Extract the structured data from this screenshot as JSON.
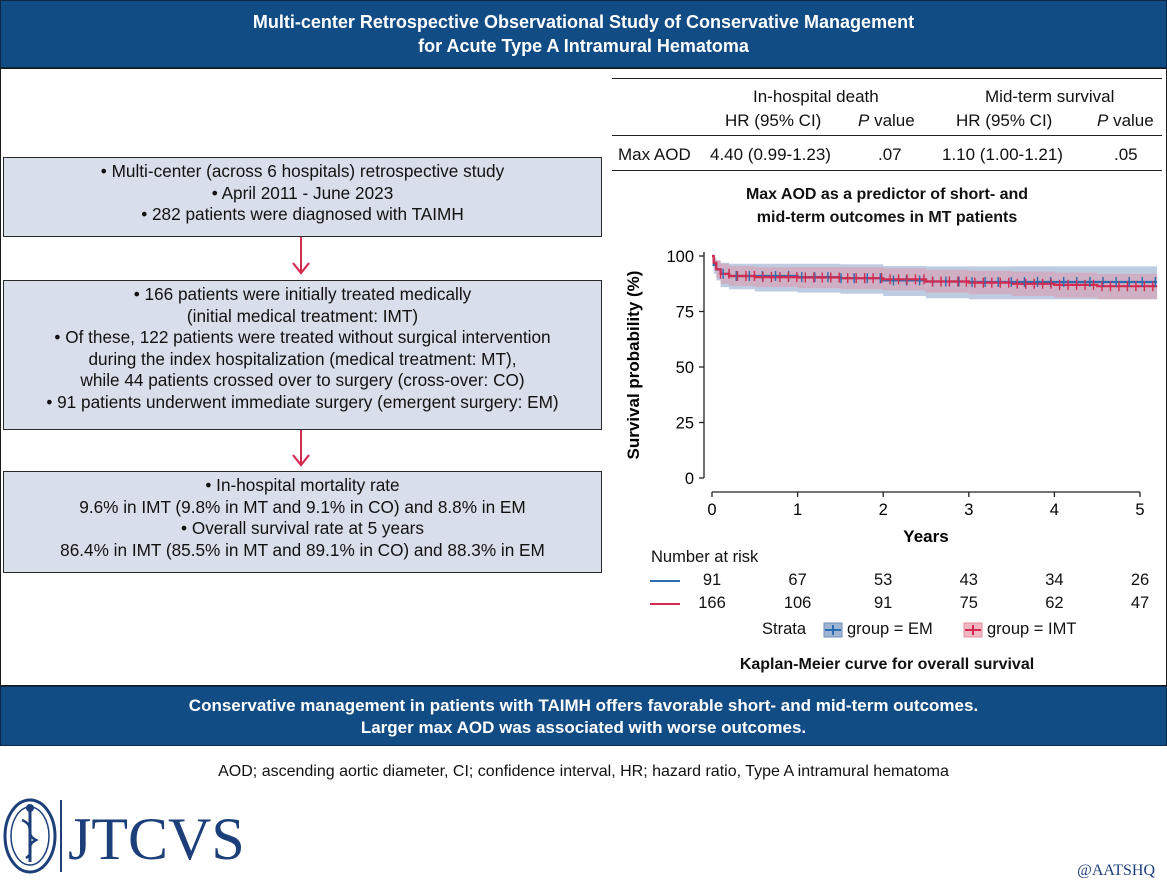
{
  "header": {
    "title_line1": "Multi-center Retrospective Observational Study of Conservative Management",
    "title_line2": "for Acute Type A Intramural Hematoma"
  },
  "boxes": [
    {
      "lines": [
        "• Multi-center (across 6 hospitals) retrospective study",
        "• April 2011 - June 2023",
        "• 282 patients were diagnosed with TAIMH"
      ]
    },
    {
      "lines": [
        "• 166 patients were initially treated medically",
        "(initial medical treatment: IMT)",
        "• Of these, 122 patients were treated without surgical intervention",
        "during the index hospitalization (medical treatment: MT),",
        "while 44 patients crossed over to surgery (cross-over: CO)",
        "• 91 patients underwent immediate surgery (emergent surgery: EM)"
      ]
    },
    {
      "lines": [
        "• In-hospital mortality rate",
        "9.6% in IMT (9.8% in MT and 9.1% in CO) and 8.8% in EM",
        "• Overall survival rate at 5 years",
        "86.4% in IMT (85.5% in MT and 89.1% in CO) and 88.3% in EM"
      ]
    }
  ],
  "hr_table": {
    "group1": "In-hospital death",
    "group2": "Mid-term survival",
    "col_hr": "HR (95% CI)",
    "col_p_italic": "P",
    "col_p_rest": " value",
    "row_label": "Max AOD",
    "row_hr1": "4.40 (0.99-1.23)",
    "row_p1": ".07",
    "row_hr2": "1.10 (1.00-1.21)",
    "row_p2": ".05"
  },
  "chart_data": {
    "type": "line",
    "title": "Max AOD as a predictor of short- and mid-term outcomes in MT patients",
    "title_line1": "Max AOD as a predictor of short- and",
    "title_line2": "mid-term outcomes in MT patients",
    "xlabel": "Years",
    "ylabel": "Survival probability (%)",
    "xlim": [
      0,
      5
    ],
    "ylim": [
      0,
      100
    ],
    "x_ticks": [
      "0",
      "1",
      "2",
      "3",
      "4",
      "5"
    ],
    "y_ticks": [
      "0",
      "25",
      "50",
      "75",
      "100"
    ],
    "caption": "Kaplan-Meier curve for overall survival",
    "series": [
      {
        "name": "group = EM",
        "color": "#2b6cb0",
        "band_color": "#6f8fbf",
        "x": [
          0,
          0.02,
          0.05,
          0.1,
          0.2,
          0.5,
          1.0,
          1.5,
          2.0,
          2.5,
          3.0,
          3.5,
          4.0,
          4.5,
          5.0,
          5.2
        ],
        "y": [
          100,
          96,
          94,
          92,
          91,
          91,
          90.5,
          90,
          89,
          88.5,
          88.3,
          88.3,
          88.3,
          88.3,
          88.3,
          88.3
        ],
        "lower": [
          100,
          92,
          89,
          86,
          85,
          84,
          83.5,
          83,
          82,
          81,
          80.5,
          80.5,
          80.5,
          80.5,
          80.5,
          80.5
        ],
        "upper": [
          100,
          99,
          98,
          97,
          96.5,
          96.5,
          96.5,
          96.3,
          95.5,
          95.3,
          95.3,
          95.3,
          95.3,
          95.3,
          95.3,
          95.3
        ]
      },
      {
        "name": "group = IMT",
        "color": "#d42a4f",
        "band_color": "#e58c9e",
        "x": [
          0,
          0.02,
          0.05,
          0.1,
          0.2,
          0.5,
          1.0,
          1.5,
          2.0,
          2.5,
          3.0,
          3.5,
          4.0,
          4.5,
          5.0,
          5.2
        ],
        "y": [
          100,
          97,
          94,
          92,
          91,
          90.5,
          90.3,
          90,
          89.5,
          88.5,
          88,
          87.5,
          87,
          86.4,
          86.4,
          86.4
        ],
        "lower": [
          100,
          94,
          90,
          87.5,
          86.5,
          86,
          85.5,
          85,
          84.5,
          83.5,
          82.8,
          82,
          81.3,
          80.5,
          80.5,
          80.5
        ],
        "upper": [
          100,
          99.5,
          98,
          96.5,
          95.5,
          95,
          95,
          95,
          94.5,
          93.8,
          93.3,
          93,
          92.5,
          92,
          92,
          92
        ]
      }
    ],
    "risk_table": {
      "label": "Number at risk",
      "rows": [
        {
          "color": "#2b6cb0",
          "values": [
            "91",
            "67",
            "53",
            "43",
            "34",
            "26"
          ]
        },
        {
          "color": "#d42a4f",
          "values": [
            "166",
            "106",
            "91",
            "75",
            "62",
            "47"
          ]
        }
      ]
    },
    "legend": {
      "title": "Strata",
      "items": [
        "group = EM",
        "group = IMT"
      ]
    }
  },
  "conclusion": {
    "line1": "Conservative management in patients with TAIMH offers favorable short- and mid-term outcomes.",
    "line2": "Larger max AOD was associated with worse outcomes."
  },
  "abbreviations": "AOD; ascending aortic diameter, CI; confidence interval, HR; hazard ratio, Type A intramural hematoma",
  "journal": {
    "name": "JTCVS",
    "handle": "@AATSHQ"
  },
  "colors": {
    "navy": "#124c85",
    "box_fill": "#d9dfea",
    "arrow": "#d42a4f"
  }
}
